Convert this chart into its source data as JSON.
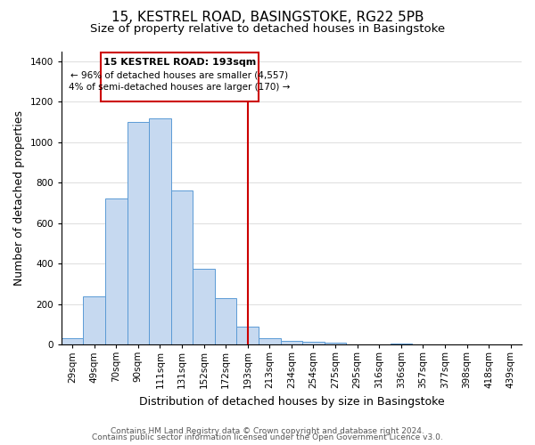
{
  "title": "15, KESTREL ROAD, BASINGSTOKE, RG22 5PB",
  "subtitle": "Size of property relative to detached houses in Basingstoke",
  "xlabel": "Distribution of detached houses by size in Basingstoke",
  "ylabel": "Number of detached properties",
  "bin_labels": [
    "29sqm",
    "49sqm",
    "70sqm",
    "90sqm",
    "111sqm",
    "131sqm",
    "152sqm",
    "172sqm",
    "193sqm",
    "213sqm",
    "234sqm",
    "254sqm",
    "275sqm",
    "295sqm",
    "316sqm",
    "336sqm",
    "357sqm",
    "377sqm",
    "398sqm",
    "418sqm",
    "439sqm"
  ],
  "bar_heights": [
    30,
    240,
    720,
    1100,
    1120,
    760,
    375,
    230,
    90,
    30,
    20,
    15,
    10,
    0,
    0,
    5,
    0,
    0,
    0,
    0,
    0
  ],
  "bar_color": "#c6d9f0",
  "bar_edge_color": "#5b9bd5",
  "vline_x": 8,
  "vline_color": "#cc0000",
  "annotation_title": "15 KESTREL ROAD: 193sqm",
  "annotation_line1": "← 96% of detached houses are smaller (4,557)",
  "annotation_line2": "4% of semi-detached houses are larger (170) →",
  "annotation_box_color": "#ffffff",
  "annotation_box_edge": "#cc0000",
  "ylim": [
    0,
    1450
  ],
  "yticks": [
    0,
    200,
    400,
    600,
    800,
    1000,
    1200,
    1400
  ],
  "footer_line1": "Contains HM Land Registry data © Crown copyright and database right 2024.",
  "footer_line2": "Contains public sector information licensed under the Open Government Licence v3.0.",
  "title_fontsize": 11,
  "subtitle_fontsize": 9.5,
  "axis_label_fontsize": 9,
  "tick_fontsize": 7.5,
  "footer_fontsize": 6.5
}
